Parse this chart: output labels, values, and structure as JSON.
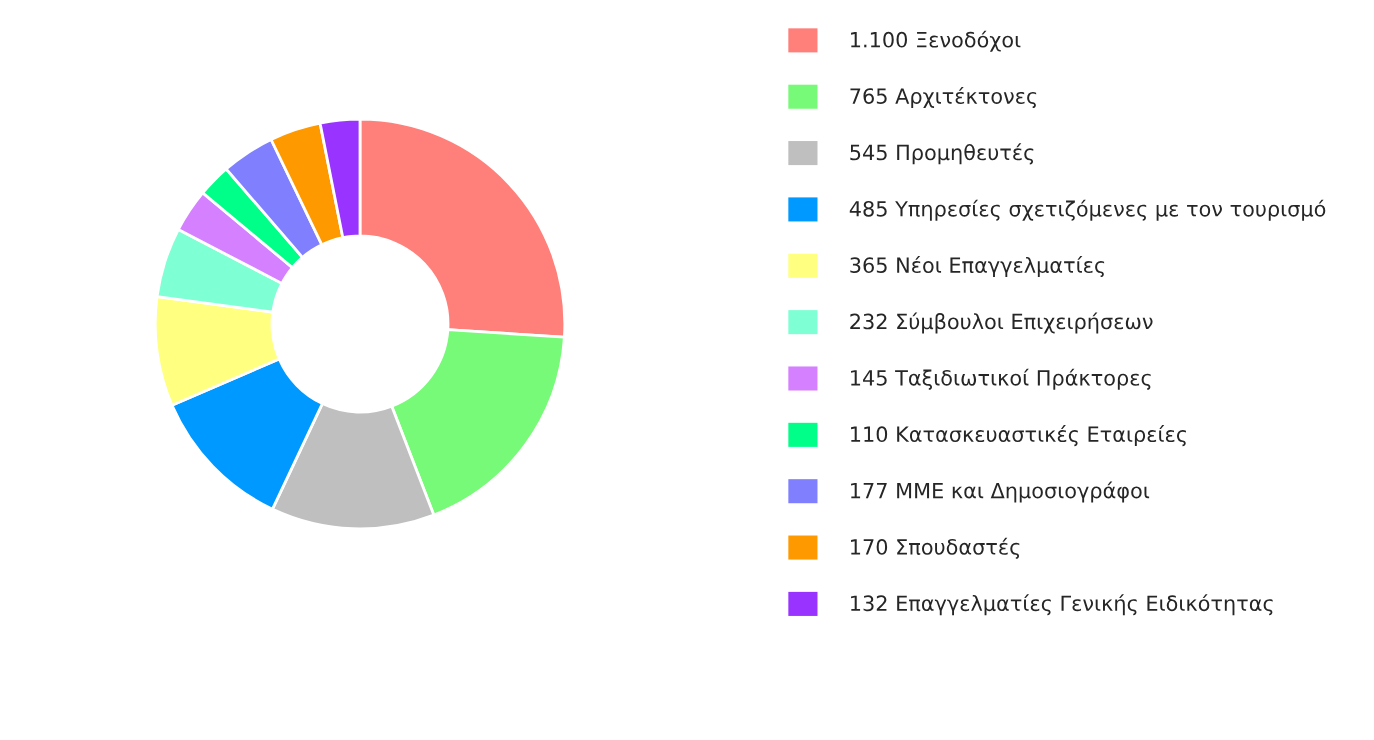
{
  "chart_data": {
    "type": "donut",
    "categories": [
      "1.100 Ξενοδόχοι",
      "765 Αρχιτέκτονες",
      "545 Προμηθευτές",
      "485 Υπηρεσίες σχετιζόμενες με τον τουρισμό",
      "365 Νέοι Επαγγελματίες",
      "232 Σύμβουλοι Επιχειρήσεων",
      "145 Ταξιδιωτικοί Πράκτορες",
      "110 Κατασκευαστικές Εταιρείες",
      "177 ΜΜΕ και Δημοσιογράφοι",
      "170 Σπουδαστές",
      "132 Επαγγελματίες Γενικής Ειδικότητας"
    ],
    "values": [
      1100,
      765,
      545,
      485,
      365,
      232,
      145,
      110,
      177,
      170,
      132
    ],
    "colors": [
      "#ff7f7a",
      "#77fa77",
      "#bfbfbf",
      "#0099ff",
      "#ffff80",
      "#7fffd4",
      "#d580ff",
      "#00ff88",
      "#8080ff",
      "#ff9900",
      "#9933ff"
    ],
    "legend": "right"
  }
}
